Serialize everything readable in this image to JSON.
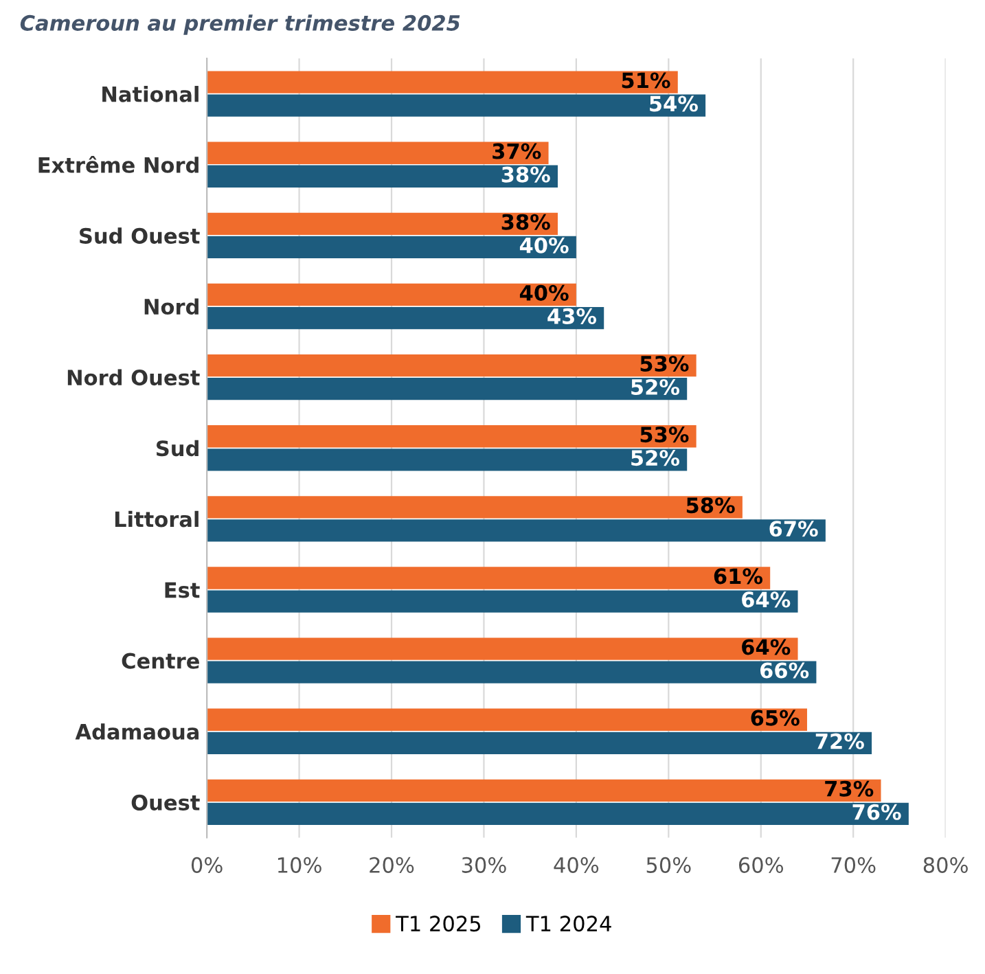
{
  "chart_data": {
    "type": "bar",
    "orientation": "horizontal",
    "title": "Cameroun au premier trimestre 2025",
    "categories": [
      "National",
      "Extrême Nord",
      "Sud Ouest",
      "Nord",
      "Nord Ouest",
      "Sud",
      "Littoral",
      "Est",
      "Centre",
      "Adamaoua",
      "Ouest"
    ],
    "series": [
      {
        "name": "T1 2025",
        "color": "#f06c2c",
        "values": [
          51,
          37,
          38,
          40,
          53,
          53,
          58,
          61,
          64,
          65,
          73
        ],
        "value_labels": [
          "51%",
          "37%",
          "38%",
          "40%",
          "53%",
          "53%",
          "58%",
          "61%",
          "64%",
          "65%",
          "73%"
        ]
      },
      {
        "name": "T1 2024",
        "color": "#1d5c7e",
        "values": [
          54,
          38,
          40,
          43,
          52,
          52,
          67,
          64,
          66,
          72,
          76
        ],
        "value_labels": [
          "54%",
          "38%",
          "40%",
          "43%",
          "52%",
          "52%",
          "67%",
          "64%",
          "66%",
          "72%",
          "76%"
        ]
      }
    ],
    "xlim": [
      0,
      80
    ],
    "xticks": [
      {
        "value": 0,
        "label": "0%"
      },
      {
        "value": 10,
        "label": "10%"
      },
      {
        "value": 20,
        "label": "20%"
      },
      {
        "value": 30,
        "label": "30%"
      },
      {
        "value": 40,
        "label": "40%"
      },
      {
        "value": 50,
        "label": "50%"
      },
      {
        "value": 60,
        "label": "60%"
      },
      {
        "value": 70,
        "label": "70%"
      },
      {
        "value": 80,
        "label": "80%"
      }
    ],
    "grid": "x",
    "legend": "bottom"
  }
}
